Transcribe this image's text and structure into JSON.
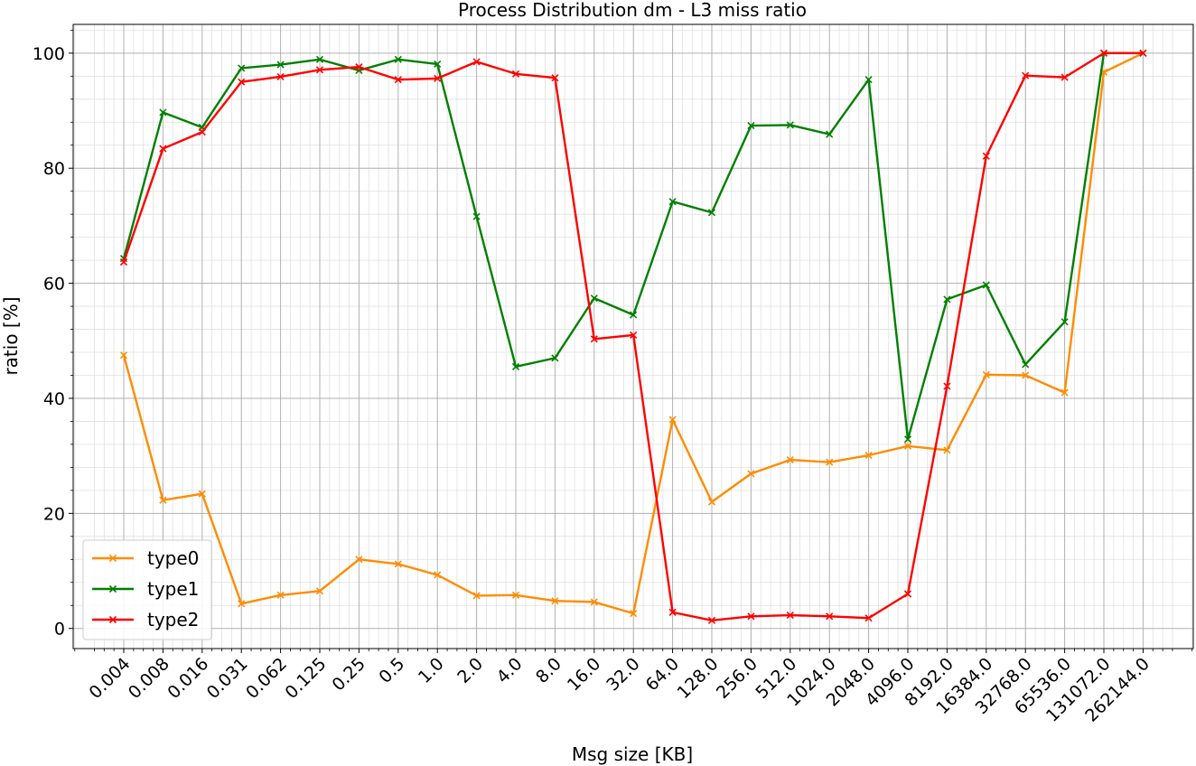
{
  "chart_data": {
    "type": "line",
    "title": "Process Distribution dm - L3 miss ratio",
    "xlabel": "Msg size [KB]",
    "ylabel": "ratio [%]",
    "categories": [
      "0.004",
      "0.008",
      "0.016",
      "0.031",
      "0.062",
      "0.125",
      "0.25",
      "0.5",
      "1.0",
      "2.0",
      "4.0",
      "8.0",
      "16.0",
      "32.0",
      "64.0",
      "128.0",
      "256.0",
      "512.0",
      "1024.0",
      "2048.0",
      "4096.0",
      "8192.0",
      "16384.0",
      "32768.0",
      "65536.0",
      "131072.0",
      "262144.0"
    ],
    "ylim": [
      -3.5,
      105
    ],
    "yticks": [
      "0",
      "20",
      "40",
      "60",
      "80",
      "100"
    ],
    "grid": true,
    "legend_position": "lower-left",
    "series": [
      {
        "name": "type0",
        "color": "#ff8c00",
        "values": [
          47.5,
          22.3,
          23.4,
          4.3,
          5.8,
          6.5,
          12.0,
          11.2,
          9.3,
          5.7,
          5.8,
          4.8,
          4.6,
          2.6,
          36.3,
          22.0,
          26.9,
          29.3,
          28.9,
          30.1,
          31.7,
          31.0,
          44.1,
          44.0,
          41.0,
          96.7,
          100.0
        ]
      },
      {
        "name": "type1",
        "color": "#008000",
        "values": [
          64.3,
          89.7,
          87.1,
          97.4,
          98.0,
          98.9,
          97.0,
          98.9,
          98.1,
          71.6,
          45.5,
          47.0,
          57.4,
          54.5,
          74.2,
          72.3,
          87.4,
          87.5,
          85.9,
          95.4,
          32.9,
          57.2,
          59.7,
          45.9,
          53.3,
          100.0,
          100.0
        ]
      },
      {
        "name": "type2",
        "color": "#ff0000",
        "values": [
          63.7,
          83.4,
          86.3,
          95.0,
          95.9,
          97.1,
          97.6,
          95.4,
          95.6,
          98.5,
          96.4,
          95.7,
          50.3,
          51.0,
          2.8,
          1.4,
          2.1,
          2.3,
          2.1,
          1.8,
          6.0,
          42.1,
          82.1,
          96.1,
          95.8,
          100.0,
          100.0
        ]
      }
    ]
  }
}
